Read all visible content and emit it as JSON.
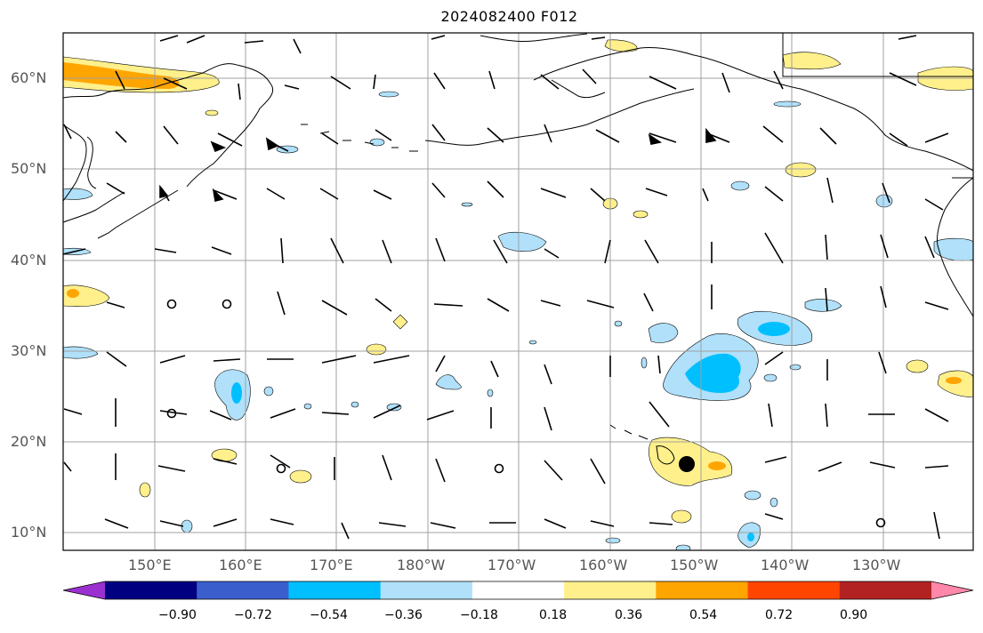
{
  "title": "2024082400 F012",
  "lat_labels": [
    "60°N",
    "50°N",
    "40°N",
    "30°N",
    "20°N",
    "10°N"
  ],
  "lon_labels": [
    "150°E",
    "160°E",
    "170°E",
    "180°W",
    "170°W",
    "160°W",
    "150°W",
    "140°W",
    "130°W"
  ],
  "colorbar": {
    "ticks": [
      "−0.90",
      "−0.72",
      "−0.54",
      "−0.36",
      "−0.18",
      "0.18",
      "0.36",
      "0.54",
      "0.72",
      "0.90"
    ],
    "colors": [
      "#9b30d0",
      "#000080",
      "#3a5fcd",
      "#00bfff",
      "#b0e0fa",
      "#ffffff",
      "#fff08c",
      "#ffa500",
      "#ff4500",
      "#b22222",
      "#ff88aa"
    ]
  },
  "colors": {
    "land_line": "#000000",
    "grid": "#a0a0a0",
    "positive_light": "#fff08c",
    "positive_mid": "#ffa500",
    "positive_strong": "#ff4500",
    "negative_light": "#b0e0fa",
    "negative_mid": "#00bfff"
  },
  "marker": {
    "name": "storm-center",
    "lat": 17.5,
    "lon": -151.5
  }
}
